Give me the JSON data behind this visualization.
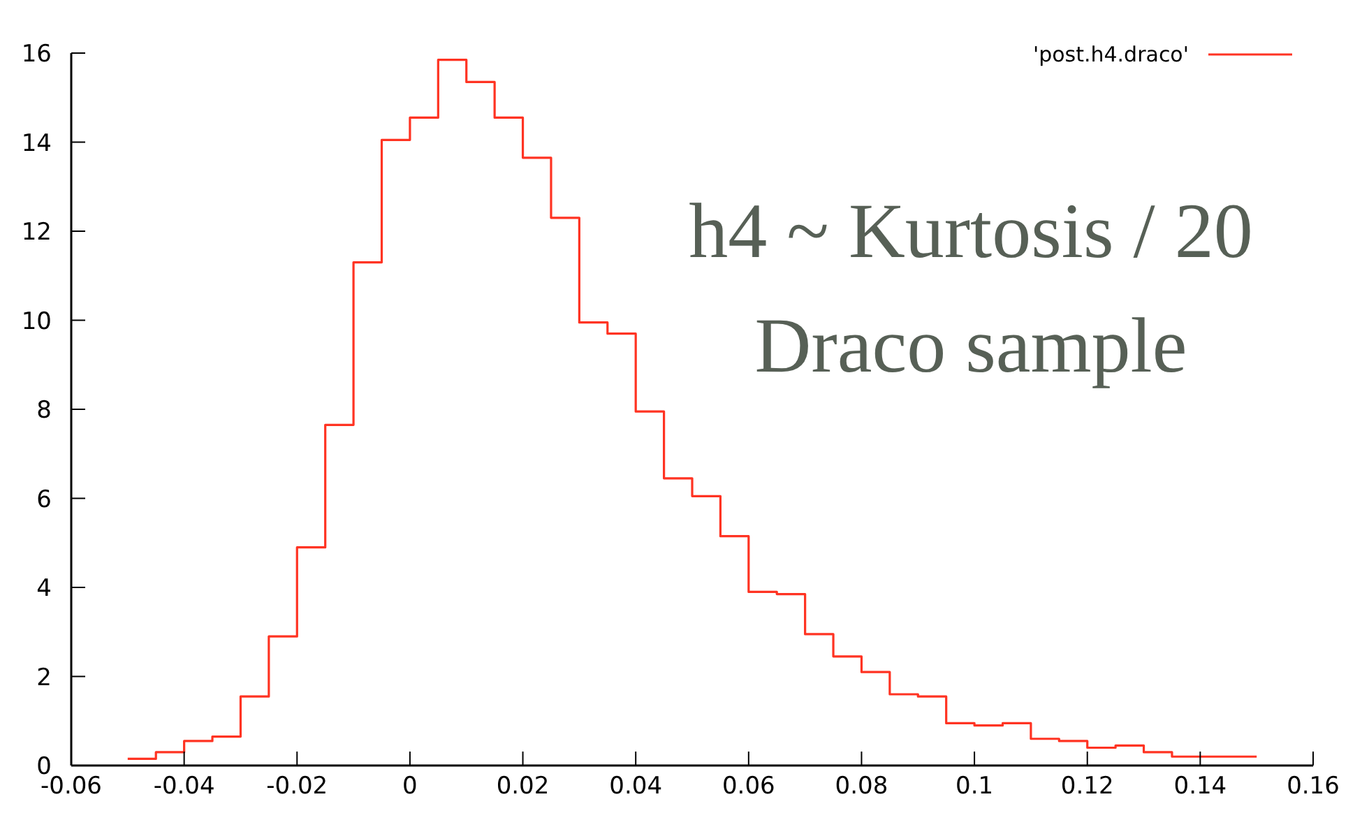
{
  "chart_data": {
    "type": "histogram",
    "bins": [
      -0.05,
      -0.045,
      -0.04,
      -0.035,
      -0.03,
      -0.025,
      -0.02,
      -0.015,
      -0.01,
      -0.005,
      0,
      0.005,
      0.01,
      0.015,
      0.02,
      0.025,
      0.03,
      0.035,
      0.04,
      0.045,
      0.05,
      0.055,
      0.06,
      0.065,
      0.07,
      0.075,
      0.08,
      0.085,
      0.09,
      0.095,
      0.1,
      0.105,
      0.11,
      0.115,
      0.12,
      0.125,
      0.13,
      0.135,
      0.14,
      0.145,
      0.15
    ],
    "series": [
      {
        "name": "'post.h4.draco'",
        "color": "#ff3322",
        "values": [
          0.15,
          0.3,
          0.55,
          0.65,
          1.55,
          2.9,
          4.9,
          7.65,
          11.3,
          14.05,
          14.55,
          15.85,
          15.35,
          14.55,
          13.65,
          12.3,
          9.95,
          9.7,
          7.95,
          6.45,
          6.05,
          5.15,
          3.9,
          3.85,
          2.95,
          2.45,
          2.1,
          1.6,
          1.55,
          0.95,
          0.9,
          0.95,
          0.6,
          0.55,
          0.4,
          0.45,
          0.3,
          0.2,
          0.2,
          0.2
        ]
      }
    ],
    "xlim": [
      -0.06,
      0.16
    ],
    "xticks": [
      -0.06,
      -0.04,
      -0.02,
      0,
      0.02,
      0.04,
      0.06,
      0.08,
      0.1,
      0.12,
      0.14,
      0.16
    ],
    "ylim": [
      0,
      16
    ],
    "yticks": [
      0,
      2,
      4,
      6,
      8,
      10,
      12,
      14,
      16
    ],
    "legend": "top right",
    "annotations": [
      "h4 ~ Kurtosis / 20",
      "Draco sample"
    ]
  }
}
